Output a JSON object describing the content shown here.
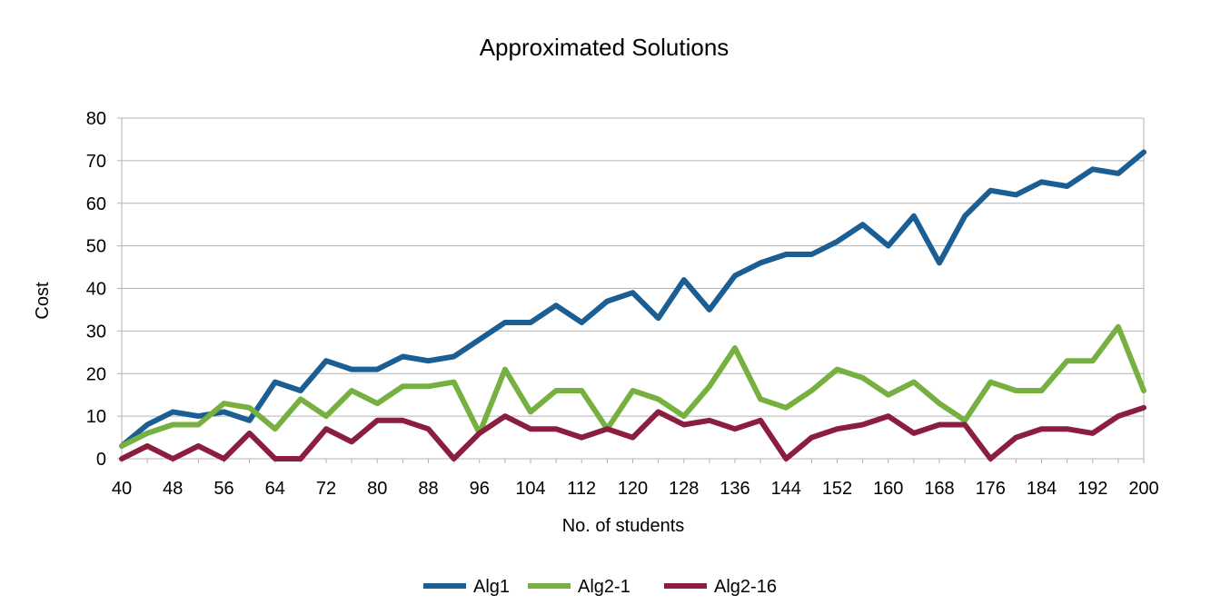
{
  "chart_data": {
    "type": "line",
    "title": "Approximated Solutions",
    "xlabel": "No. of students",
    "ylabel": "Cost",
    "x": [
      40,
      44,
      48,
      52,
      56,
      60,
      64,
      68,
      72,
      76,
      80,
      84,
      88,
      92,
      96,
      100,
      104,
      108,
      112,
      116,
      120,
      124,
      128,
      132,
      136,
      140,
      144,
      148,
      152,
      156,
      160,
      164,
      168,
      172,
      176,
      180,
      184,
      188,
      192,
      196,
      200
    ],
    "x_tick_labels": [
      "40",
      "48",
      "56",
      "64",
      "72",
      "80",
      "88",
      "96",
      "104",
      "112",
      "120",
      "128",
      "136",
      "144",
      "152",
      "160",
      "168",
      "176",
      "184",
      "192",
      "200"
    ],
    "y_tick_labels": [
      "0",
      "10",
      "20",
      "30",
      "40",
      "50",
      "60",
      "70",
      "80"
    ],
    "xlim": [
      40,
      200
    ],
    "ylim": [
      0,
      80
    ],
    "grid": "horizontal",
    "legend_position": "bottom",
    "series": [
      {
        "name": "Alg1",
        "color": "#1a5e94",
        "values": [
          3,
          8,
          11,
          10,
          11,
          9,
          18,
          16,
          23,
          21,
          21,
          24,
          23,
          24,
          28,
          32,
          32,
          36,
          32,
          37,
          39,
          33,
          42,
          35,
          43,
          46,
          48,
          48,
          51,
          55,
          50,
          57,
          46,
          57,
          63,
          62,
          65,
          64,
          68,
          67,
          72
        ]
      },
      {
        "name": "Alg2-1",
        "color": "#76b041",
        "values": [
          3,
          6,
          8,
          8,
          13,
          12,
          7,
          14,
          10,
          16,
          13,
          17,
          17,
          18,
          6,
          21,
          11,
          16,
          16,
          7,
          16,
          14,
          10,
          17,
          26,
          14,
          12,
          16,
          21,
          19,
          15,
          18,
          13,
          9,
          18,
          16,
          16,
          23,
          23,
          31,
          16
        ]
      },
      {
        "name": "Alg2-16",
        "color": "#8b1e3f",
        "values": [
          0,
          3,
          0,
          3,
          0,
          6,
          0,
          0,
          7,
          4,
          9,
          9,
          7,
          0,
          6,
          10,
          7,
          7,
          5,
          7,
          5,
          11,
          8,
          9,
          7,
          9,
          0,
          5,
          7,
          8,
          10,
          6,
          8,
          8,
          0,
          5,
          7,
          7,
          6,
          10,
          12
        ]
      }
    ]
  }
}
